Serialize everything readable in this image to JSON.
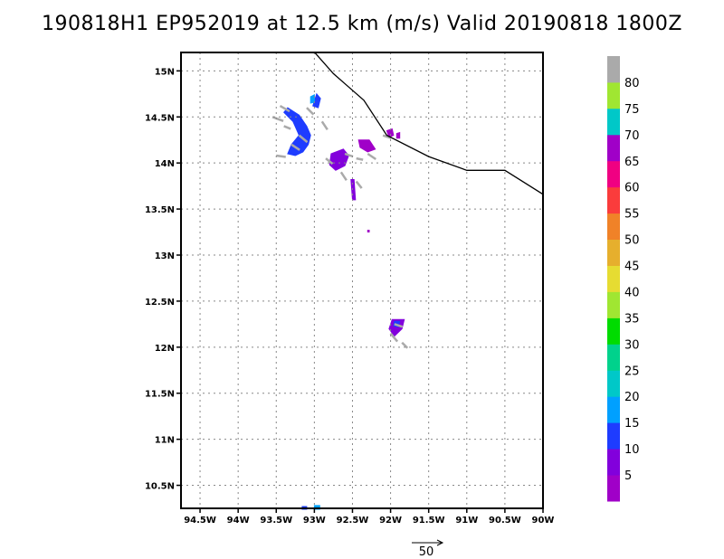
{
  "chart_data": {
    "type": "heatmap",
    "title": "190818H1 EP952019 at 12.5 km (m/s) Valid 20190818 1800Z",
    "x_ticks": [
      "94.5W",
      "94W",
      "93.5W",
      "93W",
      "92.5W",
      "92W",
      "91.5W",
      "91W",
      "90.5W",
      "90W"
    ],
    "x_tick_values": [
      -94.5,
      -94.0,
      -93.5,
      -93.0,
      -92.5,
      -92.0,
      -91.5,
      -91.0,
      -90.5,
      -90.0
    ],
    "y_ticks": [
      "15N",
      "14.5N",
      "14N",
      "13.5N",
      "13N",
      "12.5N",
      "12N",
      "11.5N",
      "11N",
      "10.5N"
    ],
    "y_tick_values": [
      15.0,
      14.5,
      14.0,
      13.5,
      13.0,
      12.5,
      12.0,
      11.5,
      11.0,
      10.5
    ],
    "xlim": [
      -94.75,
      -90.0
    ],
    "ylim": [
      10.25,
      15.2
    ],
    "grid": true,
    "colorbar": {
      "labels": [
        "5",
        "10",
        "15",
        "20",
        "25",
        "30",
        "35",
        "40",
        "45",
        "50",
        "55",
        "60",
        "65",
        "70",
        "75",
        "80"
      ],
      "colors": [
        "#a000c8",
        "#8200dc",
        "#1e3cff",
        "#00a0ff",
        "#00c8c8",
        "#00d28c",
        "#00dc00",
        "#a0e632",
        "#e6dc32",
        "#e6af2d",
        "#f08228",
        "#fa3c3c",
        "#f00082",
        "#a000c8",
        "#00c8c8",
        "#a0e632",
        "#aaaaaa"
      ]
    },
    "coastline": [
      [
        -93.05,
        15.25
      ],
      [
        -92.75,
        14.97
      ],
      [
        -92.35,
        14.68
      ],
      [
        -92.05,
        14.3
      ],
      [
        -91.5,
        14.07
      ],
      [
        -91.0,
        13.92
      ],
      [
        -90.5,
        13.92
      ],
      [
        -90.0,
        13.66
      ]
    ],
    "wind_patches": [
      {
        "color": "#1e3cff",
        "points": [
          [
            -93.4,
            14.55
          ],
          [
            -93.35,
            14.6
          ],
          [
            -93.2,
            14.52
          ],
          [
            -93.1,
            14.4
          ],
          [
            -93.05,
            14.3
          ],
          [
            -93.08,
            14.2
          ],
          [
            -93.15,
            14.12
          ],
          [
            -93.25,
            14.08
          ],
          [
            -93.35,
            14.1
          ],
          [
            -93.3,
            14.2
          ],
          [
            -93.2,
            14.3
          ],
          [
            -93.28,
            14.45
          ]
        ]
      },
      {
        "color": "#1e3cff",
        "points": [
          [
            -92.97,
            14.75
          ],
          [
            -92.92,
            14.7
          ],
          [
            -92.95,
            14.6
          ],
          [
            -93.02,
            14.62
          ]
        ]
      },
      {
        "color": "#00a0ff",
        "points": [
          [
            -93.05,
            14.72
          ],
          [
            -93.0,
            14.74
          ],
          [
            -93.0,
            14.66
          ],
          [
            -93.05,
            14.65
          ]
        ]
      },
      {
        "color": "#8200dc",
        "points": [
          [
            -92.78,
            14.1
          ],
          [
            -92.62,
            14.15
          ],
          [
            -92.55,
            14.08
          ],
          [
            -92.6,
            13.97
          ],
          [
            -92.72,
            13.92
          ],
          [
            -92.8,
            13.98
          ]
        ]
      },
      {
        "color": "#a000c8",
        "points": [
          [
            -92.42,
            14.25
          ],
          [
            -92.28,
            14.25
          ],
          [
            -92.2,
            14.15
          ],
          [
            -92.3,
            14.12
          ],
          [
            -92.4,
            14.17
          ]
        ]
      },
      {
        "color": "#8200dc",
        "points": [
          [
            -91.98,
            12.3
          ],
          [
            -91.82,
            12.3
          ],
          [
            -91.85,
            12.2
          ],
          [
            -91.95,
            12.12
          ],
          [
            -92.02,
            12.2
          ]
        ]
      },
      {
        "color": "#1e3cff",
        "points": [
          [
            -91.95,
            12.28
          ],
          [
            -91.88,
            12.28
          ],
          [
            -91.9,
            12.22
          ],
          [
            -91.96,
            12.23
          ]
        ]
      },
      {
        "color": "#a000c8",
        "points": [
          [
            -92.05,
            14.35
          ],
          [
            -91.98,
            14.37
          ],
          [
            -91.96,
            14.3
          ],
          [
            -92.02,
            14.28
          ]
        ]
      },
      {
        "color": "#a000c8",
        "points": [
          [
            -91.92,
            14.32
          ],
          [
            -91.88,
            14.33
          ],
          [
            -91.88,
            14.27
          ],
          [
            -91.92,
            14.27
          ]
        ]
      },
      {
        "color": "#8200dc",
        "points": [
          [
            -92.52,
            13.82
          ],
          [
            -92.48,
            13.82
          ],
          [
            -92.46,
            13.6
          ],
          [
            -92.5,
            13.6
          ]
        ]
      },
      {
        "color": "#a000c8",
        "points": [
          [
            -92.3,
            13.27
          ],
          [
            -92.28,
            13.27
          ],
          [
            -92.28,
            13.25
          ],
          [
            -92.3,
            13.25
          ]
        ]
      },
      {
        "color": "#00a0ff",
        "points": [
          [
            -93.0,
            10.28
          ],
          [
            -92.93,
            10.28
          ],
          [
            -92.93,
            10.24
          ],
          [
            -93.0,
            10.24
          ]
        ]
      },
      {
        "color": "#1e3cff",
        "points": [
          [
            -93.16,
            10.27
          ],
          [
            -93.1,
            10.27
          ],
          [
            -93.1,
            10.24
          ],
          [
            -93.16,
            10.24
          ]
        ]
      }
    ],
    "wind_vectors": [
      [
        -93.45,
        14.62,
        0.35,
        -0.2
      ],
      [
        -93.55,
        14.5,
        0.4,
        -0.15
      ],
      [
        -93.2,
        14.3,
        0.3,
        -0.25
      ],
      [
        -93.4,
        14.4,
        0.25,
        -0.1
      ],
      [
        -93.5,
        14.08,
        0.35,
        -0.05
      ],
      [
        -93.3,
        14.2,
        0.3,
        -0.2
      ],
      [
        -93.1,
        14.6,
        0.25,
        -0.25
      ],
      [
        -92.9,
        14.45,
        0.2,
        -0.3
      ],
      [
        -92.85,
        14.05,
        0.25,
        -0.2
      ],
      [
        -92.6,
        14.1,
        0.3,
        -0.1
      ],
      [
        -92.65,
        13.9,
        0.2,
        -0.3
      ],
      [
        -92.45,
        14.05,
        0.25,
        -0.05
      ],
      [
        -92.3,
        14.1,
        0.3,
        -0.2
      ],
      [
        -92.45,
        13.8,
        0.2,
        -0.25
      ],
      [
        -92.1,
        14.3,
        0.3,
        -0.1
      ],
      [
        -91.95,
        12.25,
        0.3,
        -0.1
      ],
      [
        -92.0,
        12.15,
        0.25,
        -0.3
      ],
      [
        -91.85,
        12.05,
        0.2,
        -0.2
      ]
    ],
    "reference_vector": {
      "label": "50"
    }
  }
}
